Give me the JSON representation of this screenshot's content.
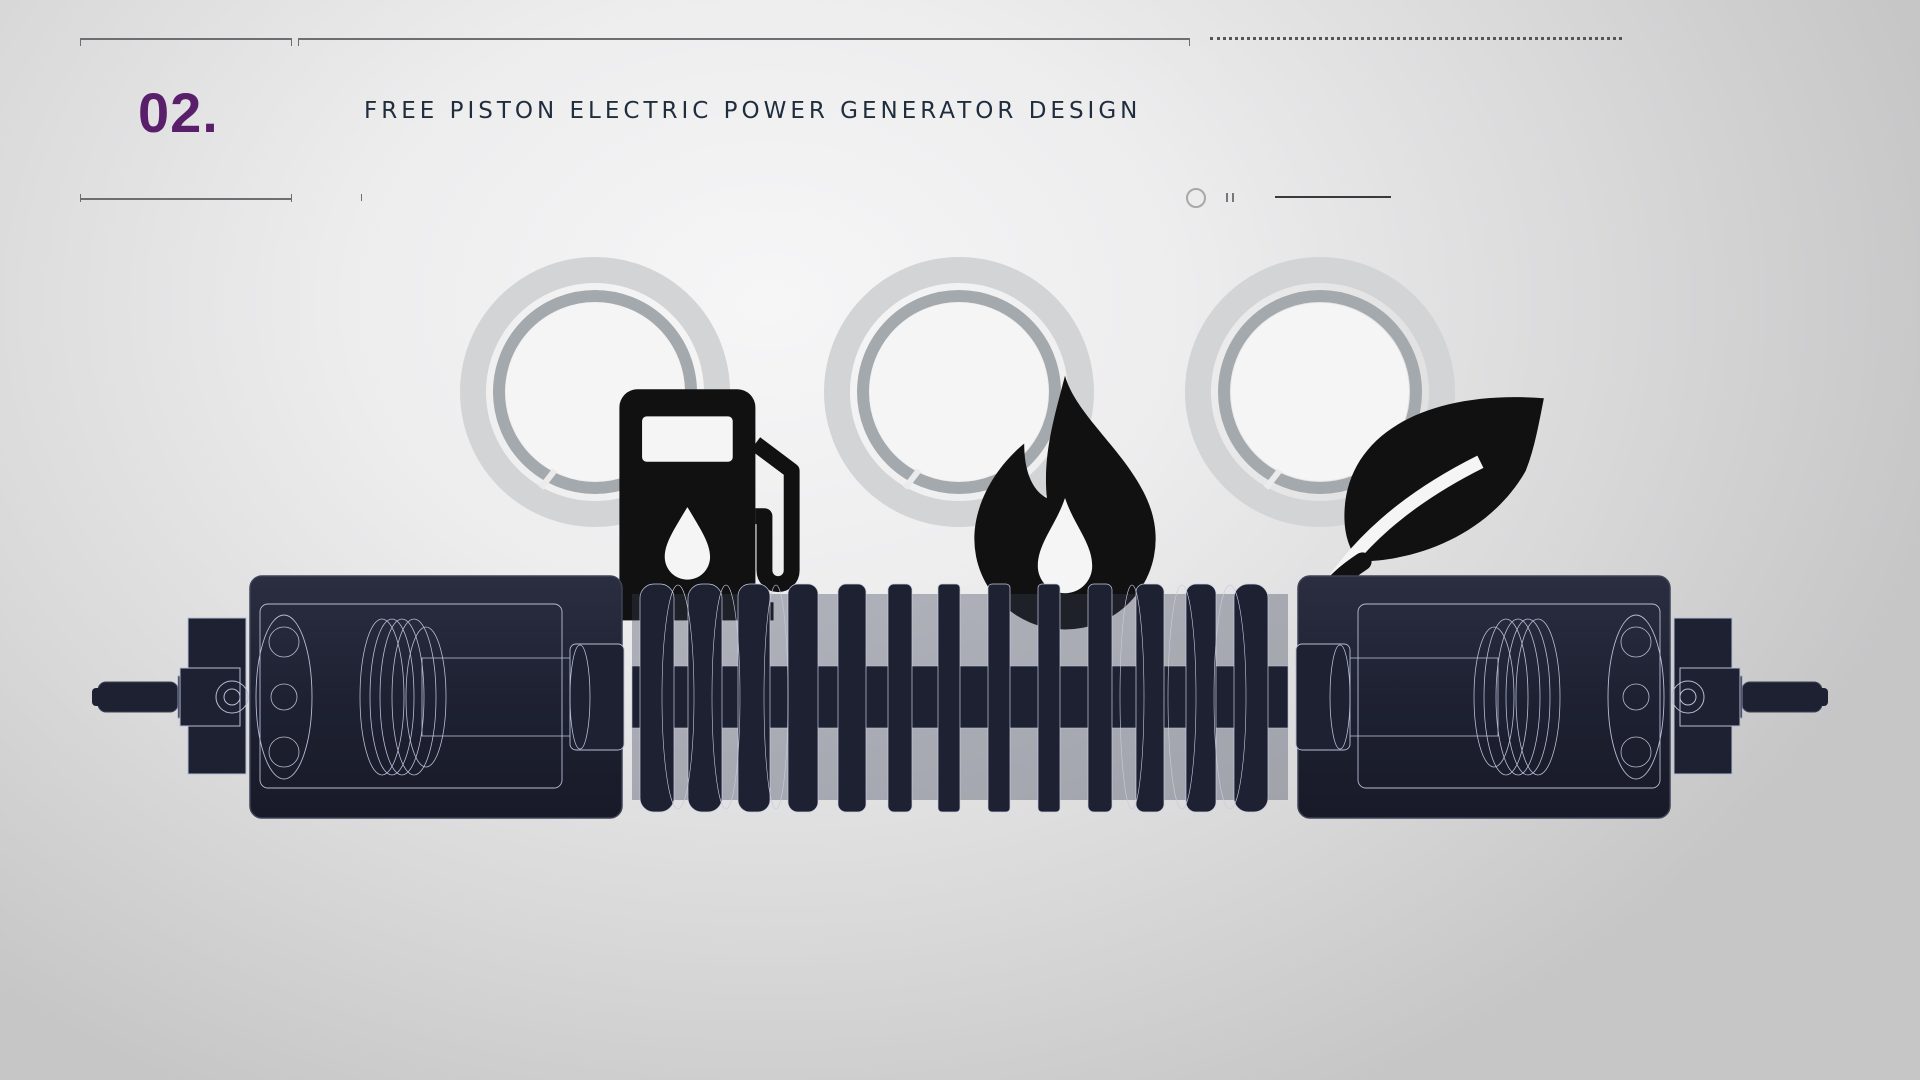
{
  "header": {
    "section_number": "02.",
    "title": "FREE PISTON ELECTRIC POWER GENERATOR DESIGN"
  },
  "features": [
    {
      "icon": "fuel-pump-icon"
    },
    {
      "icon": "flame-icon"
    },
    {
      "icon": "leaf-icon"
    }
  ],
  "colors": {
    "accent": "#5a1f6b",
    "title": "#1f2d3d",
    "machine": "#1e2132",
    "ring_outer": "#d3d4d6",
    "ring_inner": "#a4a9ad"
  }
}
